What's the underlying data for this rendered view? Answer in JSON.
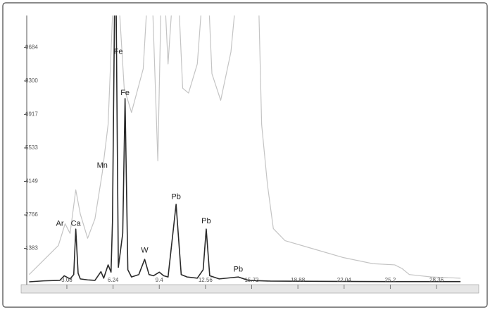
{
  "chart_data": {
    "type": "line",
    "xlim": [
      0,
      30.5
    ],
    "ylim": [
      0,
      10830
    ],
    "xticks": [
      3.08,
      6.24,
      9.4,
      12.56,
      15.72,
      18.88,
      22.04,
      25.2,
      28.36
    ],
    "yticks": [
      1383,
      2766,
      4149,
      5533,
      6917,
      8300,
      9684
    ],
    "series": [
      {
        "color": "#c4c4c4",
        "x": [
          0.5,
          1.5,
          2.5,
          2.96,
          3.3,
          3.69,
          4.0,
          4.5,
          5.0,
          5.5,
          5.9,
          6.4,
          7.0,
          7.5,
          8.3,
          8.8,
          9.3,
          9.6,
          10.0,
          10.55,
          11.0,
          11.4,
          12.0,
          12.61,
          13.0,
          13.6,
          14.3,
          15.0,
          16.1,
          16.4,
          16.8,
          17.2,
          18.0,
          20.0,
          22.0,
          24.0,
          25.5,
          26.0,
          26.5,
          28.0,
          30.0
        ],
        "values": [
          300,
          900,
          1500,
          2400,
          2000,
          3800,
          2800,
          1800,
          2600,
          4500,
          6500,
          14000,
          8000,
          7000,
          8800,
          14000,
          5000,
          14000,
          9000,
          14000,
          8000,
          7800,
          9000,
          14000,
          8600,
          7500,
          9500,
          14000,
          14000,
          6500,
          4000,
          2200,
          1700,
          1350,
          1000,
          750,
          700,
          550,
          300,
          200,
          150
        ]
      },
      {
        "color": "#2a2a2a",
        "x": [
          0.5,
          1.5,
          2.6,
          2.9,
          3.3,
          3.55,
          3.69,
          3.85,
          4.0,
          4.5,
          5.0,
          5.41,
          5.6,
          5.9,
          6.1,
          6.2,
          6.4,
          6.6,
          6.9,
          7.06,
          7.25,
          7.5,
          8.0,
          8.4,
          8.7,
          9.0,
          9.4,
          9.7,
          10.0,
          10.55,
          10.9,
          11.3,
          12.0,
          12.4,
          12.61,
          12.85,
          13.5,
          14.8,
          15.5,
          17.0,
          20.0,
          25.0,
          30.0
        ],
        "values": [
          0,
          40,
          60,
          250,
          120,
          300,
          2180,
          350,
          120,
          80,
          60,
          420,
          150,
          700,
          400,
          2500,
          15000,
          600,
          2000,
          7570,
          500,
          200,
          300,
          930,
          300,
          250,
          400,
          250,
          200,
          3200,
          300,
          200,
          150,
          500,
          2180,
          250,
          120,
          200,
          60,
          30,
          20,
          10,
          10
        ]
      }
    ],
    "annotations": [
      {
        "text": "Ar",
        "x": 2.6,
        "y": 2400
      },
      {
        "text": "Ca",
        "x": 3.69,
        "y": 2400
      },
      {
        "text": "Mn",
        "x": 5.5,
        "y": 4800
      },
      {
        "text": "Fe",
        "x": 6.6,
        "y": 9500
      },
      {
        "text": "Fe",
        "x": 7.06,
        "y": 7800
      },
      {
        "text": "W",
        "x": 8.4,
        "y": 1300
      },
      {
        "text": "Pb",
        "x": 10.55,
        "y": 3500
      },
      {
        "text": "Pb",
        "x": 12.61,
        "y": 2500
      },
      {
        "text": "Pb",
        "x": 14.8,
        "y": 500
      }
    ]
  }
}
